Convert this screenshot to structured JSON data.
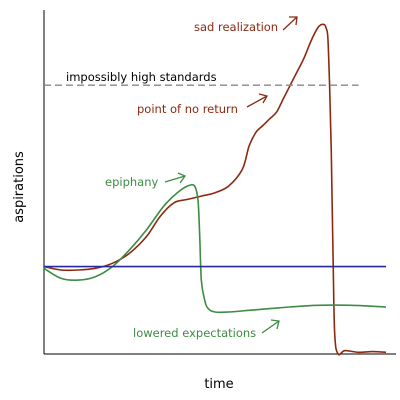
{
  "chart_data": {
    "type": "line",
    "title": "",
    "xlabel": "time",
    "ylabel": "aspirations",
    "xlim": [
      0,
      100
    ],
    "ylim": [
      0,
      100
    ],
    "grid": false,
    "legend": "none",
    "series": [
      {
        "color": "#8b2a10",
        "x": [
          0,
          5,
          10,
          15,
          20,
          25,
          30,
          34,
          38,
          42,
          46,
          50,
          54,
          58,
          60,
          62,
          64,
          66,
          68,
          70,
          72,
          74,
          76,
          78,
          80,
          81,
          82,
          82.5,
          83,
          83.5,
          84,
          84.5,
          85,
          86,
          88,
          92,
          96,
          100
        ],
        "y": [
          26,
          25,
          25,
          25.5,
          27,
          30,
          35,
          41,
          45,
          46,
          47,
          48,
          50,
          55,
          62,
          66,
          68,
          70,
          72,
          76,
          80,
          84,
          88,
          93,
          97,
          98,
          98,
          97,
          94,
          80,
          60,
          30,
          6,
          0,
          1,
          0.5,
          0.7,
          0.5
        ]
      },
      {
        "color": "#3d8b45",
        "x": [
          0,
          5,
          10,
          15,
          20,
          25,
          30,
          35,
          39,
          42,
          44,
          45,
          45.5,
          46,
          47,
          48,
          50,
          54,
          60,
          66,
          72,
          80,
          90,
          100
        ],
        "y": [
          25.5,
          22.5,
          22,
          23,
          26,
          31,
          37,
          44,
          48,
          50,
          50,
          46,
          36,
          22,
          16,
          13.5,
          12.5,
          12.5,
          13,
          13.5,
          14,
          14.5,
          14.5,
          14
        ]
      },
      {
        "color": "#2828a0",
        "x": [
          0,
          100
        ],
        "y": [
          26,
          26
        ]
      },
      {
        "color": "#888888",
        "dashed": true,
        "x": [
          0,
          92
        ],
        "y": [
          80,
          80
        ]
      }
    ],
    "annotations": [
      {
        "text": "sad realization",
        "color": "#8b2a10"
      },
      {
        "text": "impossibly high standards",
        "color": "#000000"
      },
      {
        "text": "point of no return",
        "color": "#8b2a10"
      },
      {
        "text": "epiphany",
        "color": "#3d8b45"
      },
      {
        "text": "lowered expectations",
        "color": "#3d8b45"
      }
    ]
  }
}
